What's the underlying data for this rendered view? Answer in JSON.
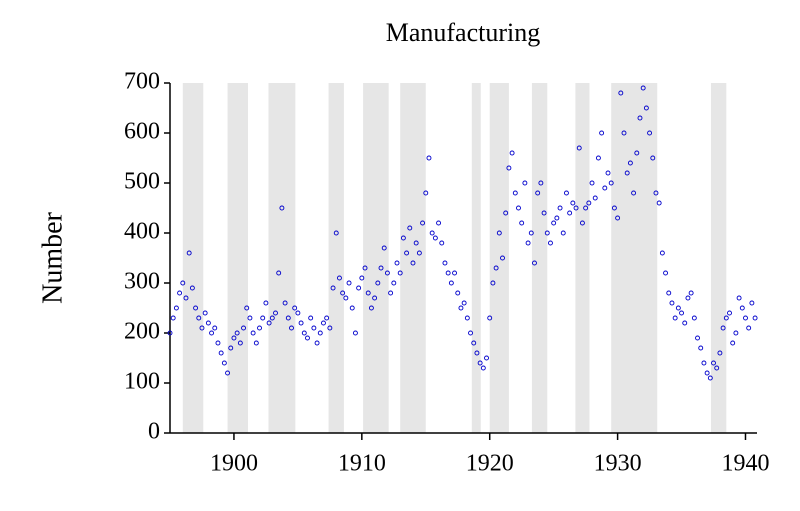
{
  "chart_data": {
    "type": "scatter",
    "title": "Manufacturing",
    "y_label": "Number",
    "color": "#0000cc",
    "xlim": [
      1895,
      1940.9
    ],
    "ylim": [
      0,
      700
    ],
    "xticks": [
      1900,
      1910,
      1920,
      1930,
      1940
    ],
    "yticks": [
      0,
      100,
      200,
      300,
      400,
      500,
      600,
      700
    ],
    "shaded_periods": [
      [
        1896.0,
        1897.6
      ],
      [
        1899.5,
        1901.1
      ],
      [
        1902.7,
        1904.8
      ],
      [
        1907.4,
        1908.6
      ],
      [
        1910.1,
        1912.1
      ],
      [
        1913.0,
        1915.0
      ],
      [
        1918.6,
        1919.3
      ],
      [
        1920.0,
        1921.5
      ],
      [
        1923.3,
        1924.5
      ],
      [
        1926.7,
        1927.8
      ],
      [
        1929.5,
        1933.1
      ],
      [
        1937.3,
        1938.5
      ]
    ],
    "shade_color": "#e6e6e6",
    "x": [
      1895,
      1895.25,
      1895.5,
      1895.75,
      1896,
      1896.25,
      1896.5,
      1896.75,
      1897,
      1897.25,
      1897.5,
      1897.75,
      1898,
      1898.25,
      1898.5,
      1898.75,
      1899,
      1899.25,
      1899.5,
      1899.75,
      1900,
      1900.25,
      1900.5,
      1900.75,
      1901,
      1901.25,
      1901.5,
      1901.75,
      1902,
      1902.25,
      1902.5,
      1902.75,
      1903,
      1903.25,
      1903.5,
      1903.75,
      1904,
      1904.25,
      1904.5,
      1904.75,
      1905,
      1905.25,
      1905.5,
      1905.75,
      1906,
      1906.25,
      1906.5,
      1906.75,
      1907,
      1907.25,
      1907.5,
      1907.75,
      1908,
      1908.25,
      1908.5,
      1908.75,
      1909,
      1909.25,
      1909.5,
      1909.75,
      1910,
      1910.25,
      1910.5,
      1910.75,
      1911,
      1911.25,
      1911.5,
      1911.75,
      1912,
      1912.25,
      1912.5,
      1912.75,
      1913,
      1913.25,
      1913.5,
      1913.75,
      1914,
      1914.25,
      1914.5,
      1914.75,
      1915,
      1915.25,
      1915.5,
      1915.75,
      1916,
      1916.25,
      1916.5,
      1916.75,
      1917,
      1917.25,
      1917.5,
      1917.75,
      1918,
      1918.25,
      1918.5,
      1918.75,
      1919,
      1919.25,
      1919.5,
      1919.75,
      1920,
      1920.25,
      1920.5,
      1920.75,
      1921,
      1921.25,
      1921.5,
      1921.75,
      1922,
      1922.25,
      1922.5,
      1922.75,
      1923,
      1923.25,
      1923.5,
      1923.75,
      1924,
      1924.25,
      1924.5,
      1924.75,
      1925,
      1925.25,
      1925.5,
      1925.75,
      1926,
      1926.25,
      1926.5,
      1926.75,
      1927,
      1927.25,
      1927.5,
      1927.75,
      1928,
      1928.25,
      1928.5,
      1928.75,
      1929,
      1929.25,
      1929.5,
      1929.75,
      1930,
      1930.25,
      1930.5,
      1930.75,
      1931,
      1931.25,
      1931.5,
      1931.75,
      1932,
      1932.25,
      1932.5,
      1932.75,
      1933,
      1933.25,
      1933.5,
      1933.75,
      1934,
      1934.25,
      1934.5,
      1934.75,
      1935,
      1935.25,
      1935.5,
      1935.75,
      1936,
      1936.25,
      1936.5,
      1936.75,
      1937,
      1937.25,
      1937.5,
      1937.75,
      1938,
      1938.25,
      1938.5,
      1938.75,
      1939,
      1939.25,
      1939.5,
      1939.75,
      1940,
      1940.25,
      1940.5,
      1940.75
    ],
    "values": [
      200,
      230,
      250,
      280,
      300,
      270,
      360,
      290,
      250,
      230,
      210,
      240,
      220,
      200,
      210,
      180,
      160,
      140,
      120,
      170,
      190,
      200,
      180,
      210,
      250,
      230,
      200,
      180,
      210,
      230,
      260,
      220,
      230,
      240,
      320,
      450,
      260,
      230,
      210,
      250,
      240,
      220,
      200,
      190,
      230,
      210,
      180,
      200,
      220,
      230,
      210,
      290,
      400,
      310,
      280,
      270,
      300,
      250,
      200,
      290,
      310,
      330,
      280,
      250,
      270,
      300,
      330,
      370,
      320,
      280,
      300,
      340,
      320,
      390,
      360,
      410,
      340,
      380,
      360,
      420,
      480,
      550,
      400,
      390,
      420,
      380,
      340,
      320,
      300,
      320,
      280,
      250,
      260,
      230,
      200,
      180,
      160,
      140,
      130,
      150,
      230,
      300,
      330,
      400,
      350,
      440,
      530,
      560,
      480,
      450,
      420,
      500,
      380,
      400,
      340,
      480,
      500,
      440,
      400,
      380,
      420,
      430,
      450,
      400,
      480,
      440,
      460,
      450,
      570,
      420,
      450,
      460,
      500,
      470,
      550,
      600,
      490,
      520,
      500,
      450,
      430,
      680,
      600,
      520,
      540,
      480,
      560,
      630,
      690,
      650,
      600,
      550,
      480,
      460,
      360,
      320,
      280,
      260,
      230,
      250,
      240,
      220,
      270,
      280,
      230,
      190,
      170,
      140,
      120,
      110,
      140,
      130,
      160,
      210,
      230,
      240,
      180,
      200,
      270,
      250,
      230,
      210,
      260,
      230
    ]
  }
}
